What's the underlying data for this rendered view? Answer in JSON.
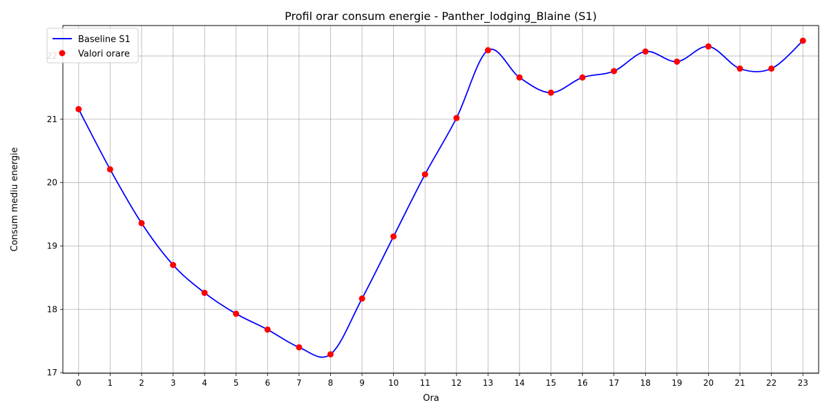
{
  "chart_data": {
    "type": "line",
    "title": "Profil orar consum energie - Panther_lodging_Blaine (S1)",
    "xlabel": "Ora",
    "ylabel": "Consum mediu energie",
    "x": [
      0,
      1,
      2,
      3,
      4,
      5,
      6,
      7,
      8,
      9,
      10,
      11,
      12,
      13,
      14,
      15,
      16,
      17,
      18,
      19,
      20,
      21,
      22,
      23
    ],
    "xticks": [
      "0",
      "1",
      "2",
      "3",
      "4",
      "5",
      "6",
      "7",
      "8",
      "9",
      "10",
      "11",
      "12",
      "13",
      "14",
      "15",
      "16",
      "17",
      "18",
      "19",
      "20",
      "21",
      "22",
      "23"
    ],
    "yticks": [
      "17",
      "18",
      "19",
      "20",
      "21",
      "22"
    ],
    "xlim": [
      -0.5,
      23.5
    ],
    "ylim": [
      16.99,
      22.48
    ],
    "grid": true,
    "legend_position": "top-left",
    "series": [
      {
        "name": "Baseline S1",
        "kind": "smooth-line",
        "color": "#0000ff",
        "values": [
          21.16,
          20.21,
          19.36,
          18.7,
          18.26,
          17.93,
          17.68,
          17.4,
          17.29,
          18.17,
          19.15,
          20.13,
          21.02,
          22.09,
          21.66,
          21.42,
          21.66,
          21.76,
          22.07,
          21.91,
          22.15,
          21.8,
          21.8,
          22.24
        ]
      },
      {
        "name": "Valori orare",
        "kind": "scatter",
        "color": "#ff0000",
        "values": [
          21.16,
          20.21,
          19.36,
          18.7,
          18.26,
          17.93,
          17.68,
          17.4,
          17.29,
          18.17,
          19.15,
          20.13,
          21.02,
          22.09,
          21.66,
          21.42,
          21.66,
          21.76,
          22.07,
          21.91,
          22.15,
          21.8,
          21.8,
          22.24
        ]
      }
    ]
  }
}
